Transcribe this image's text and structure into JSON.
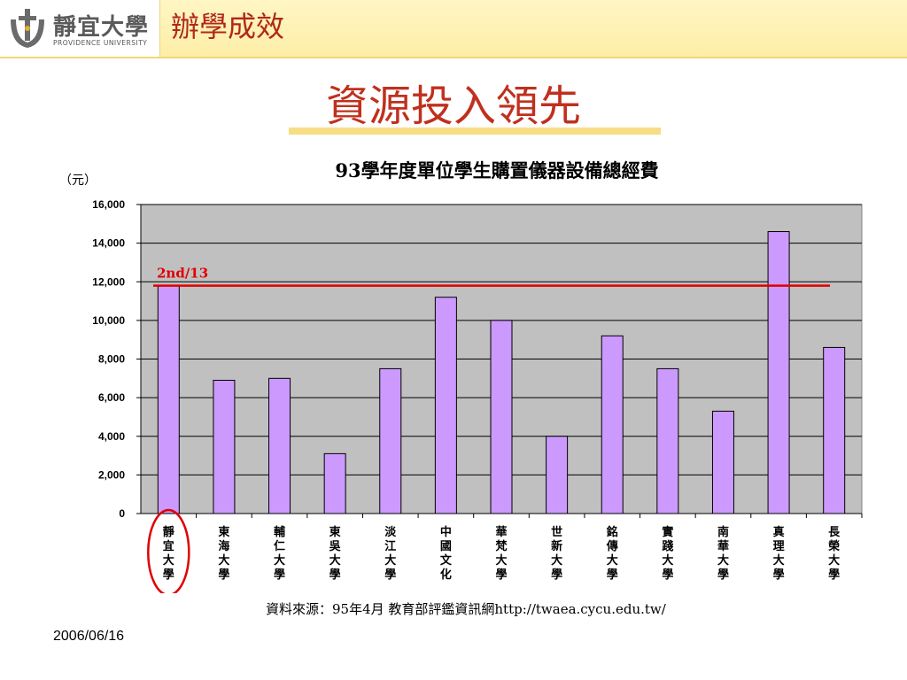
{
  "header": {
    "logo_name": "靜宜大學",
    "logo_sub": "PROVIDENCE UNIVERSITY",
    "section_title": "辦學成效"
  },
  "slide": {
    "title": "資源投入領先",
    "source": "資料來源：95年4月 教育部評鑑資訊網http://twaea.cycu.edu.tw/",
    "date": "2006/06/16"
  },
  "chart_data": {
    "type": "bar",
    "title": "93學年度單位學生購置儀器設備總經費",
    "ylabel": "（元）",
    "xlabel": "",
    "ylim": [
      0,
      16000
    ],
    "yticks": [
      0,
      2000,
      4000,
      6000,
      8000,
      10000,
      12000,
      14000,
      16000
    ],
    "ytick_labels": [
      "0",
      "2,000",
      "4,000",
      "6,000",
      "8,000",
      "10,000",
      "12,000",
      "14,000",
      "16,000"
    ],
    "grid": true,
    "categories": [
      "靜宜大學",
      "東海大學",
      "輔仁大學",
      "東吳大學",
      "淡江大學",
      "中國文化",
      "華梵大學",
      "世新大學",
      "銘傳大學",
      "實踐大學",
      "南華大學",
      "真理大學",
      "長榮大學"
    ],
    "values": [
      11800,
      6900,
      7000,
      3100,
      7500,
      11200,
      10000,
      4000,
      9200,
      7500,
      5300,
      14600,
      8600
    ],
    "reference_line": {
      "value": 11800,
      "label": "2nd/13",
      "color": "#e00000"
    },
    "highlight_index": 0,
    "colors": {
      "bar": "#cc99ff",
      "bar_stroke": "#000000",
      "plot_bg": "#c0c0c0",
      "highlight": "#e00000"
    }
  }
}
